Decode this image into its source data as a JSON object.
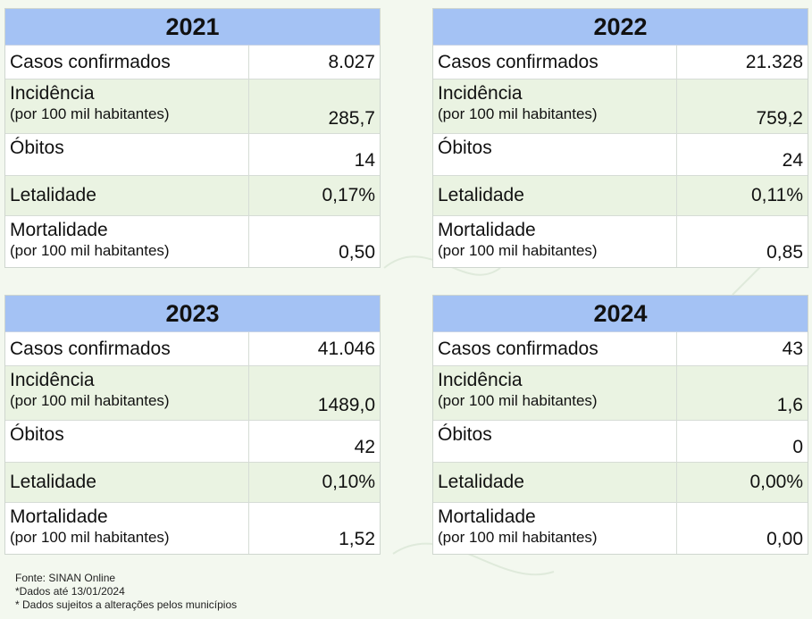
{
  "panels": [
    {
      "year": "2021",
      "casos": {
        "label": "Casos confirmados",
        "value": "8.027"
      },
      "incidencia": {
        "label": "Incidência",
        "sublabel": "(por 100 mil habitantes)",
        "value": "285,7"
      },
      "obitos": {
        "label": "Óbitos",
        "value": "14"
      },
      "letalidade": {
        "label": "Letalidade",
        "value": "0,17%"
      },
      "mortalidade": {
        "label": "Mortalidade",
        "sublabel": "(por 100 mil habitantes)",
        "value": "0,50"
      }
    },
    {
      "year": "2022",
      "casos": {
        "label": "Casos confirmados",
        "value": "21.328"
      },
      "incidencia": {
        "label": "Incidência",
        "sublabel": "(por 100 mil habitantes)",
        "value": "759,2"
      },
      "obitos": {
        "label": "Óbitos",
        "value": "24"
      },
      "letalidade": {
        "label": "Letalidade",
        "value": "0,11%"
      },
      "mortalidade": {
        "label": "Mortalidade",
        "sublabel": "(por 100 mil habitantes)",
        "value": "0,85"
      }
    },
    {
      "year": "2023",
      "casos": {
        "label": "Casos confirmados",
        "value": "41.046"
      },
      "incidencia": {
        "label": "Incidência",
        "sublabel": "(por 100 mil habitantes)",
        "value": "1489,0"
      },
      "obitos": {
        "label": "Óbitos",
        "value": "42"
      },
      "letalidade": {
        "label": "Letalidade",
        "value": "0,10%"
      },
      "mortalidade": {
        "label": "Mortalidade",
        "sublabel": "(por 100 mil habitantes)",
        "value": "1,52"
      }
    },
    {
      "year": "2024",
      "casos": {
        "label": "Casos confirmados",
        "value": "43"
      },
      "incidencia": {
        "label": "Incidência",
        "sublabel": "(por 100 mil habitantes)",
        "value": "1,6"
      },
      "obitos": {
        "label": "Óbitos",
        "value": "0"
      },
      "letalidade": {
        "label": "Letalidade",
        "value": "0,00%"
      },
      "mortalidade": {
        "label": "Mortalidade",
        "sublabel": "(por 100 mil habitantes)",
        "value": "0,00"
      }
    }
  ],
  "footer": {
    "line1": "Fonte: SINAN Online",
    "line2": "*Dados até 13/01/2024",
    "line3": "* Dados sujeitos a alterações pelos municípios"
  },
  "colors": {
    "header": "#a4c2f4",
    "alt_row": "#eaf3e2",
    "background": "#f3f8ef"
  }
}
